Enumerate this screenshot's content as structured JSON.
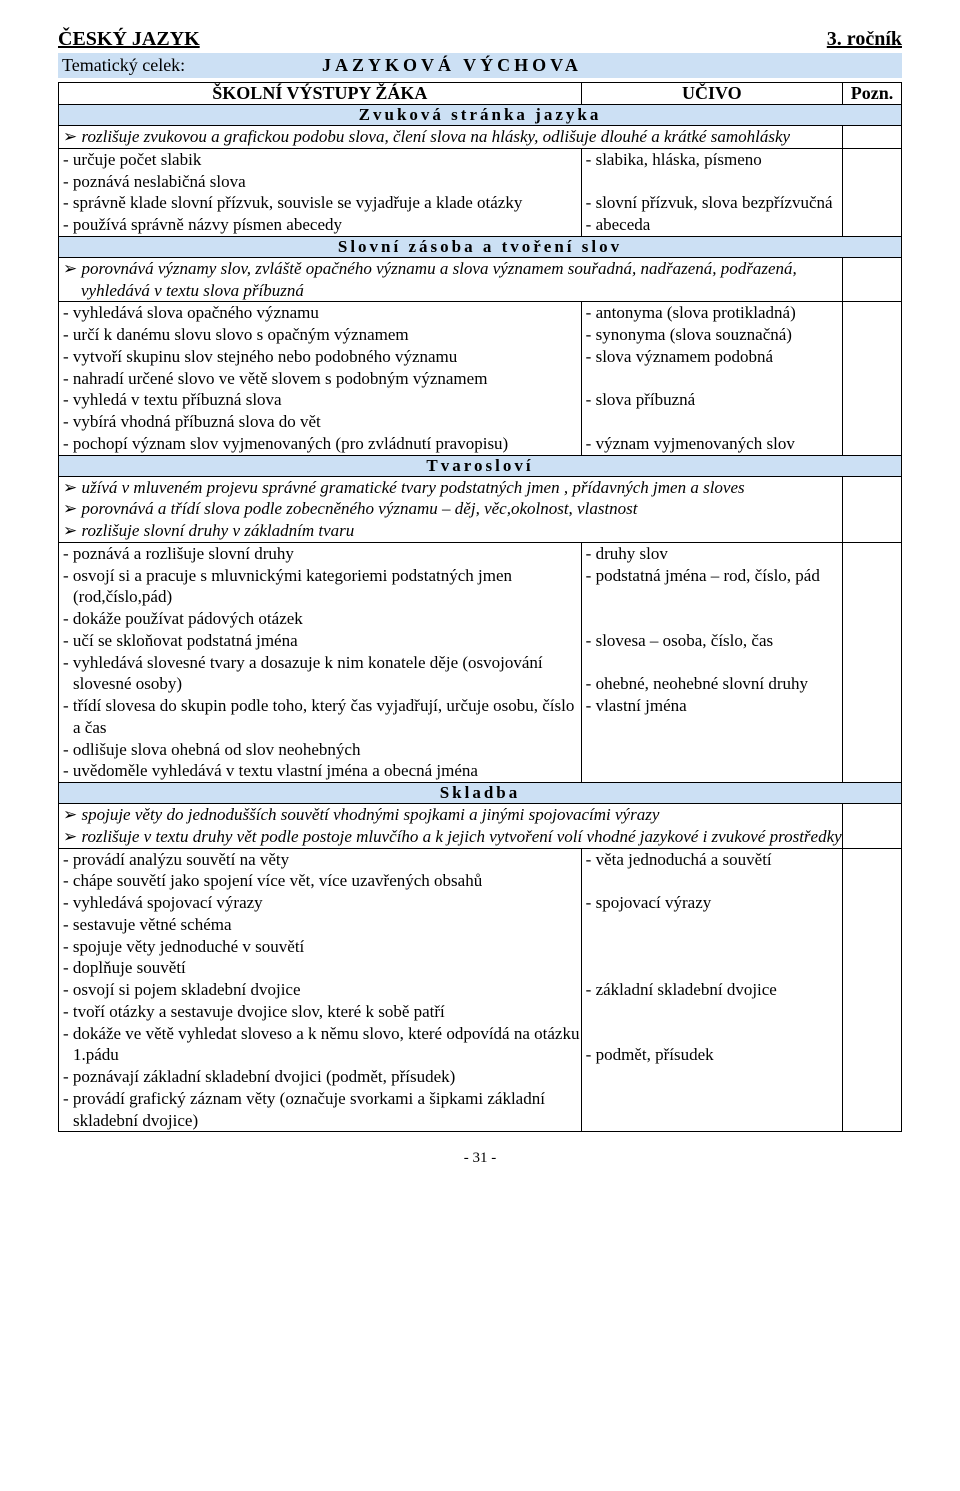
{
  "colors": {
    "band": "#cce0f4",
    "border": "#000000",
    "text": "#000000",
    "bg": "#ffffff"
  },
  "header": {
    "subject": "ČESKÝ JAZYK",
    "grade": "3. ročník",
    "tema_label": "Tematický celek:",
    "tema_value": "JAZYKOVÁ VÝCHOVA",
    "col_left": "ŠKOLNÍ VÝSTUPY ŽÁKA",
    "col_mid": "UČIVO",
    "col_right": "Pozn."
  },
  "footer": "- 31 -",
  "sections": [
    {
      "title": "Zvuková stránka jazyka",
      "goals": [
        "rozlišuje zvukovou a grafickou podobu slova, člení slova na hlásky, odlišuje dlouhé a krátké samohlásky"
      ],
      "rows": [
        {
          "l": [
            "určuje počet slabik",
            "poznává neslabičná slova",
            "správně klade slovní přízvuk, souvisle se vyjadřuje a klade otázky",
            "používá správně názvy písmen abecedy"
          ],
          "m": [
            "slabika, hláska, písmeno",
            "",
            "slovní přízvuk, slova bezpřízvučná",
            "abeceda"
          ]
        }
      ]
    },
    {
      "title": "Slovní zásoba a tvoření slov",
      "goals": [
        "porovnává významy slov, zvláště opačného významu a slova významem souřadná, nadřazená, podřazená, vyhledává v textu slova příbuzná"
      ],
      "rows": [
        {
          "l": [
            "vyhledává slova opačného významu",
            "určí k danému slovu slovo s opačným významem",
            "vytvoří skupinu slov stejného nebo podobného významu",
            "nahradí určené slovo ve větě slovem s podobným významem",
            "vyhledá v textu příbuzná slova",
            "vybírá vhodná příbuzná slova do vět",
            "pochopí význam slov vyjmenovaných (pro zvládnutí pravopisu)"
          ],
          "m": [
            "antonyma (slova protikladná)",
            "synonyma (slova souznačná)",
            "slova významem podobná",
            "",
            "slova příbuzná",
            "",
            "význam vyjmenovaných slov"
          ]
        }
      ]
    },
    {
      "title": "Tvarosloví",
      "goals": [
        "užívá v mluveném projevu správné gramatické tvary podstatných jmen , přídavných jmen a sloves",
        "porovnává a třídí slova podle zobecněného významu – děj, věc,okolnost, vlastnost",
        "rozlišuje slovní druhy v základním tvaru"
      ],
      "rows": [
        {
          "l": [
            "poznává a rozlišuje slovní druhy",
            "osvojí si a pracuje s mluvnickými kategoriemi podstatných jmen (rod,číslo,pád)",
            "dokáže používat pádových otázek",
            "učí se skloňovat podstatná jména",
            "vyhledává slovesné tvary a dosazuje k nim konatele děje (osvojování slovesné osoby)",
            "třídí slovesa do skupin podle toho, který čas vyjadřují, určuje osobu, číslo a čas",
            "odlišuje slova ohebná od slov neohebných",
            "uvědoměle vyhledává v textu vlastní jména a obecná jména"
          ],
          "m": [
            "druhy slov",
            "podstatná jména – rod, číslo, pád",
            "",
            "",
            "slovesa – osoba, číslo, čas",
            "",
            "ohebné, neohebné slovní druhy",
            "vlastní jména"
          ]
        }
      ]
    },
    {
      "title": "Skladba",
      "goals": [
        "spojuje věty do jednodušších souvětí vhodnými spojkami a jinými spojovacími výrazy",
        "rozlišuje v textu druhy vět podle postoje mluvčího a k jejich vytvoření volí vhodné jazykové i zvukové prostředky"
      ],
      "indentGoals": true,
      "rows": [
        {
          "l": [
            "provádí analýzu souvětí na věty",
            "chápe souvětí jako spojení více vět, více uzavřených obsahů",
            "vyhledává spojovací výrazy",
            "sestavuje větné schéma",
            "spojuje věty jednoduché v souvětí",
            "doplňuje souvětí",
            "osvojí si pojem skladební dvojice",
            "tvoří otázky a sestavuje dvojice slov, které k sobě patří",
            "dokáže ve větě vyhledat sloveso a k němu slovo, které odpovídá na otázku 1.pádu",
            "poznávají základní skladební dvojici (podmět, přísudek)",
            "provádí grafický záznam věty (označuje svorkami a šipkami základní skladební dvojice)"
          ],
          "m": [
            "věta jednoduchá a souvětí",
            "",
            "spojovací výrazy",
            "",
            "",
            "",
            "základní skladební dvojice",
            "",
            "",
            "podmět, přísudek",
            ""
          ]
        }
      ]
    }
  ]
}
